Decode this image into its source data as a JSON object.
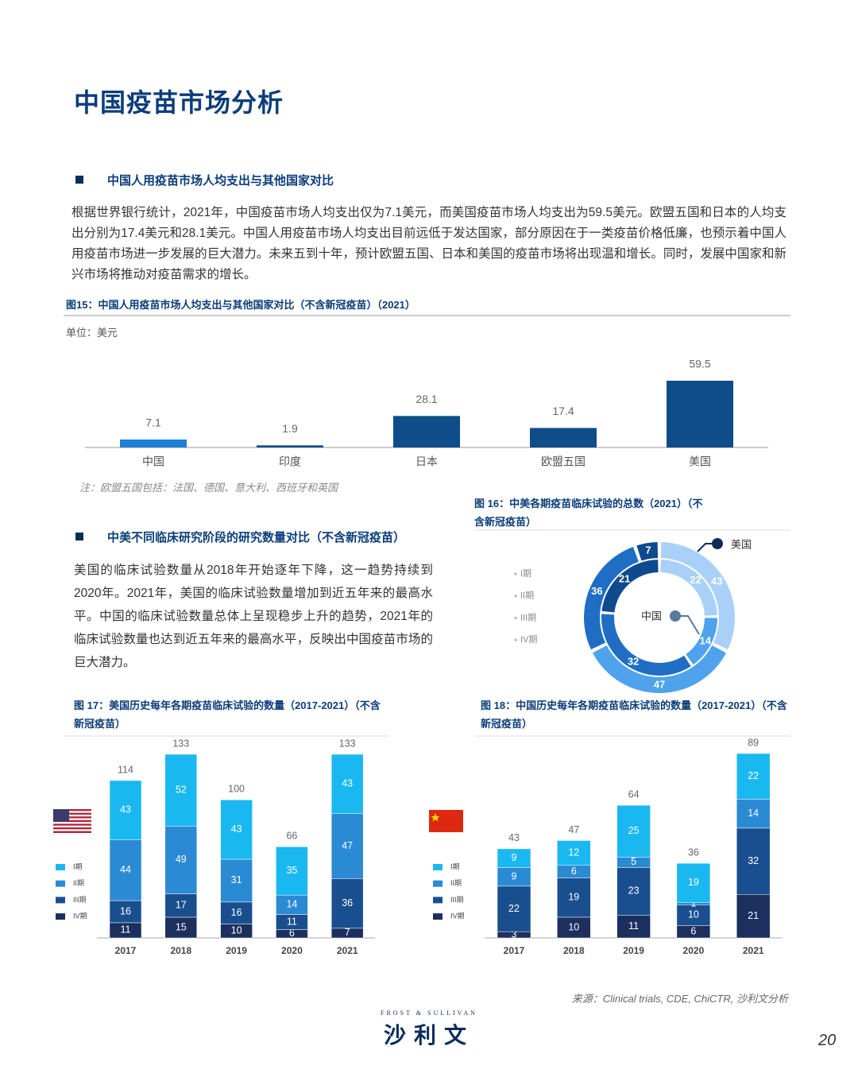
{
  "header": {
    "title": "中国疫苗市场分析"
  },
  "sections": [
    {
      "heading": "中国人用疫苗市场人均支出与其他国家对比",
      "paragraph": "根据世界银行统计，2021年，中国疫苗市场人均支出仅为7.1美元，而美国疫苗市场人均支出为59.5美元。欧盟五国和日本的人均支出分别为17.4美元和28.1美元。中国人用疫苗市场人均支出目前远低于发达国家，部分原因在于一类疫苗价格低廉，也预示着中国人用疫苗市场进一步发展的巨大潜力。未来五到十年，预计欧盟五国、日本和美国的疫苗市场将出现温和增长。同时，发展中国家和新兴市场将推动对疫苗需求的增长。"
    },
    {
      "heading": "中美不同临床研究阶段的研究数量对比（不含新冠疫苗）",
      "paragraph": "美国的临床试验数量从2018年开始逐年下降，这一趋势持续到2020年。2021年，美国的临床试验数量增加到近五年来的最高水平。中国的临床试验数量总体上呈现稳步上升的趋势，2021年的临床试验数量也达到近五年来的最高水平，反映出中国疫苗市场的巨大潜力。"
    }
  ],
  "chart_data": [
    {
      "type": "bar",
      "title": "图15：中国人用疫苗市场人均支出与其他国家对比（不含新冠疫苗）（2021）",
      "unit": "单位：美元",
      "note": "注：欧盟五国包括：法国、德国、意大利、西班牙和英国",
      "categories": [
        "中国",
        "印度",
        "日本",
        "欧盟五国",
        "美国"
      ],
      "values": [
        7.1,
        1.9,
        28.1,
        17.4,
        59.5
      ],
      "colors": [
        "#1f7fd6",
        "#124f8c",
        "#0f4c8a",
        "#0f4c8a",
        "#0f4c8a"
      ]
    },
    {
      "type": "donut",
      "title": "图 16：中美各期疫苗临床试验的总数（2021）（不含新冠疫苗）",
      "categories": [
        "I期",
        "II期",
        "III期",
        "IV期"
      ],
      "colors": [
        "#a9d1f7",
        "#4ea3ec",
        "#1f6ec4",
        "#0f4a8e"
      ],
      "series": [
        {
          "name": "美国",
          "values": [
            43,
            47,
            36,
            7
          ]
        },
        {
          "name": "中国",
          "values": [
            22,
            14,
            32,
            21
          ]
        }
      ]
    },
    {
      "type": "stacked_bar",
      "title": "图 17：美国历史每年各期疫苗临床试验的数量（2017-2021）（不含新冠疫苗）",
      "categories": [
        "2017",
        "2018",
        "2019",
        "2020",
        "2021"
      ],
      "series": [
        {
          "name": "I期",
          "color": "#1ab8f0",
          "values": [
            43,
            52,
            43,
            35,
            43
          ]
        },
        {
          "name": "II期",
          "color": "#2a8ad4",
          "values": [
            44,
            49,
            31,
            14,
            47
          ]
        },
        {
          "name": "III期",
          "color": "#1a4f8f",
          "values": [
            16,
            17,
            16,
            11,
            36
          ]
        },
        {
          "name": "IV期",
          "color": "#1c2f5e",
          "values": [
            11,
            15,
            10,
            6,
            7
          ]
        }
      ],
      "totals": [
        114,
        133,
        100,
        66,
        133
      ]
    },
    {
      "type": "stacked_bar",
      "title": "图 18：中国历史每年各期疫苗临床试验的数量（2017-2021）（不含新冠疫苗）",
      "categories": [
        "2017",
        "2018",
        "2019",
        "2020",
        "2021"
      ],
      "series": [
        {
          "name": "I期",
          "color": "#1ab8f0",
          "values": [
            9,
            12,
            25,
            19,
            22
          ]
        },
        {
          "name": "II期",
          "color": "#2a8ad4",
          "values": [
            9,
            6,
            5,
            1,
            14
          ]
        },
        {
          "name": "III期",
          "color": "#1a4f8f",
          "values": [
            22,
            19,
            23,
            10,
            32
          ]
        },
        {
          "name": "IV期",
          "color": "#1c2f5e",
          "values": [
            3,
            10,
            11,
            6,
            21
          ]
        }
      ],
      "totals": [
        43,
        47,
        64,
        36,
        89
      ]
    }
  ],
  "source": "来源：Clinical trials, CDE, ChiCTR, 沙利文分析",
  "logo": {
    "brand": "FROST & SULLIVAN",
    "name": "沙利文"
  },
  "page_number": 20
}
